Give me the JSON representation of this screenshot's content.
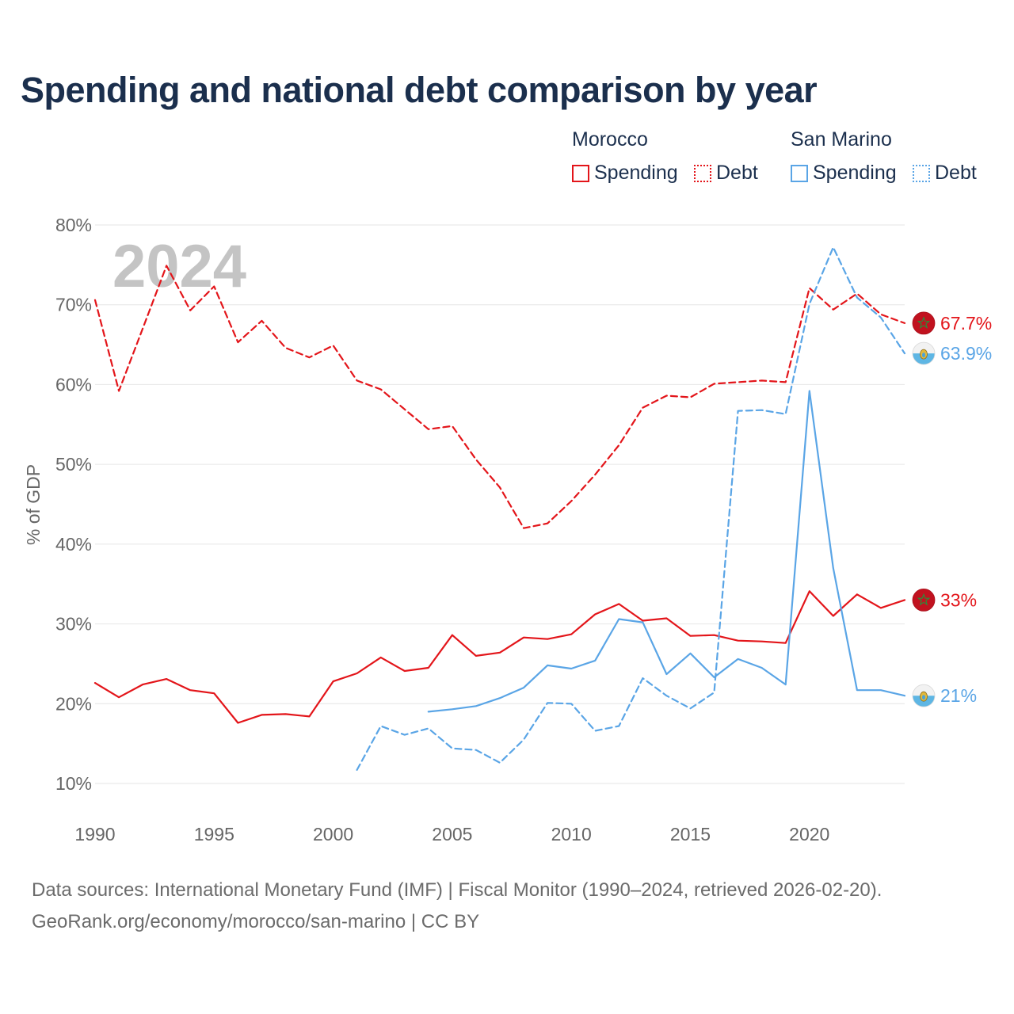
{
  "title": "Spending and national debt comparison by year",
  "legend": {
    "groups": [
      {
        "name": "Morocco",
        "color": "#e3151a",
        "items": [
          "Spending",
          "Debt"
        ]
      },
      {
        "name": "San Marino",
        "color": "#5aa5e6",
        "items": [
          "Spending",
          "Debt"
        ]
      }
    ]
  },
  "year_watermark": "2024",
  "footer": {
    "line1": "Data sources: International Monetary Fund (IMF) | Fiscal Monitor (1990–2024, retrieved 2026-02-20).",
    "line2": "GeoRank.org/economy/morocco/san-marino | CC BY"
  },
  "chart_data": {
    "type": "line",
    "title": "Spending and national debt comparison by year",
    "xlabel": "",
    "ylabel": "% of GDP",
    "xlim": [
      1990,
      2024
    ],
    "ylim": [
      10,
      80
    ],
    "x_ticks": [
      1990,
      1995,
      2000,
      2005,
      2010,
      2015,
      2020
    ],
    "x_tick_labels": [
      "1990",
      "1995",
      "2000",
      "2005",
      "2010",
      "2015",
      "2020"
    ],
    "y_ticks": [
      10,
      20,
      30,
      40,
      50,
      60,
      70,
      80
    ],
    "y_tick_labels": [
      "10%",
      "20%",
      "30%",
      "40%",
      "50%",
      "60%",
      "70%",
      "80%"
    ],
    "grid": true,
    "series": [
      {
        "name": "Morocco Spending",
        "country": "Morocco",
        "metric": "Spending",
        "color": "#e3151a",
        "dash": false,
        "end_label": "33%",
        "x": [
          1990,
          1991,
          1992,
          1993,
          1994,
          1995,
          1996,
          1997,
          1998,
          1999,
          2000,
          2001,
          2002,
          2003,
          2004,
          2005,
          2006,
          2007,
          2008,
          2009,
          2010,
          2011,
          2012,
          2013,
          2014,
          2015,
          2016,
          2017,
          2018,
          2019,
          2020,
          2021,
          2022,
          2023,
          2024
        ],
        "values": [
          22.6,
          20.8,
          22.4,
          23.1,
          21.7,
          21.3,
          17.6,
          18.6,
          18.7,
          18.4,
          22.8,
          23.8,
          25.8,
          24.1,
          24.5,
          28.6,
          26.0,
          26.4,
          28.3,
          28.1,
          28.7,
          31.2,
          32.5,
          30.4,
          30.7,
          28.5,
          28.6,
          27.9,
          27.8,
          27.6,
          34.1,
          31.0,
          33.7,
          32.0,
          33.0
        ]
      },
      {
        "name": "Morocco Debt",
        "country": "Morocco",
        "metric": "Debt",
        "color": "#e3151a",
        "dash": true,
        "end_label": "67.7%",
        "x": [
          1990,
          1991,
          1992,
          1993,
          1994,
          1995,
          1996,
          1997,
          1998,
          1999,
          2000,
          2001,
          2002,
          2003,
          2004,
          2005,
          2006,
          2007,
          2008,
          2009,
          2010,
          2011,
          2012,
          2013,
          2014,
          2015,
          2016,
          2017,
          2018,
          2019,
          2020,
          2021,
          2022,
          2023,
          2024
        ],
        "values": [
          70.6,
          59.2,
          67.0,
          74.9,
          69.3,
          72.3,
          65.3,
          68.0,
          64.6,
          63.4,
          64.9,
          60.5,
          59.4,
          56.9,
          54.4,
          54.8,
          50.6,
          47.1,
          42.0,
          42.6,
          45.4,
          48.7,
          52.4,
          57.1,
          58.6,
          58.4,
          60.1,
          60.3,
          60.5,
          60.3,
          72.1,
          69.4,
          71.4,
          68.8,
          67.7
        ]
      },
      {
        "name": "San Marino Spending",
        "country": "San Marino",
        "metric": "Spending",
        "color": "#5aa5e6",
        "dash": false,
        "end_label": "21%",
        "x": [
          2004,
          2005,
          2006,
          2007,
          2008,
          2009,
          2010,
          2011,
          2012,
          2013,
          2014,
          2015,
          2016,
          2017,
          2018,
          2019,
          2020,
          2021,
          2022,
          2023,
          2024
        ],
        "values": [
          19.0,
          19.3,
          19.7,
          20.7,
          22.0,
          24.8,
          24.4,
          25.4,
          30.6,
          30.2,
          23.7,
          26.3,
          23.3,
          25.6,
          24.5,
          22.4,
          59.2,
          37.0,
          21.7,
          21.7,
          21.0
        ]
      },
      {
        "name": "San Marino Debt",
        "country": "San Marino",
        "metric": "Debt",
        "color": "#5aa5e6",
        "dash": true,
        "end_label": "63.9%",
        "x": [
          2001,
          2002,
          2003,
          2004,
          2005,
          2006,
          2007,
          2008,
          2009,
          2010,
          2011,
          2012,
          2013,
          2014,
          2015,
          2016,
          2017,
          2018,
          2019,
          2020,
          2021,
          2022,
          2023,
          2024
        ],
        "values": [
          11.7,
          17.2,
          16.1,
          16.9,
          14.4,
          14.2,
          12.6,
          15.5,
          20.1,
          20.0,
          16.6,
          17.2,
          23.2,
          21.0,
          19.4,
          21.4,
          56.7,
          56.8,
          56.3,
          70.1,
          77.2,
          70.9,
          68.4,
          63.9
        ]
      }
    ]
  }
}
